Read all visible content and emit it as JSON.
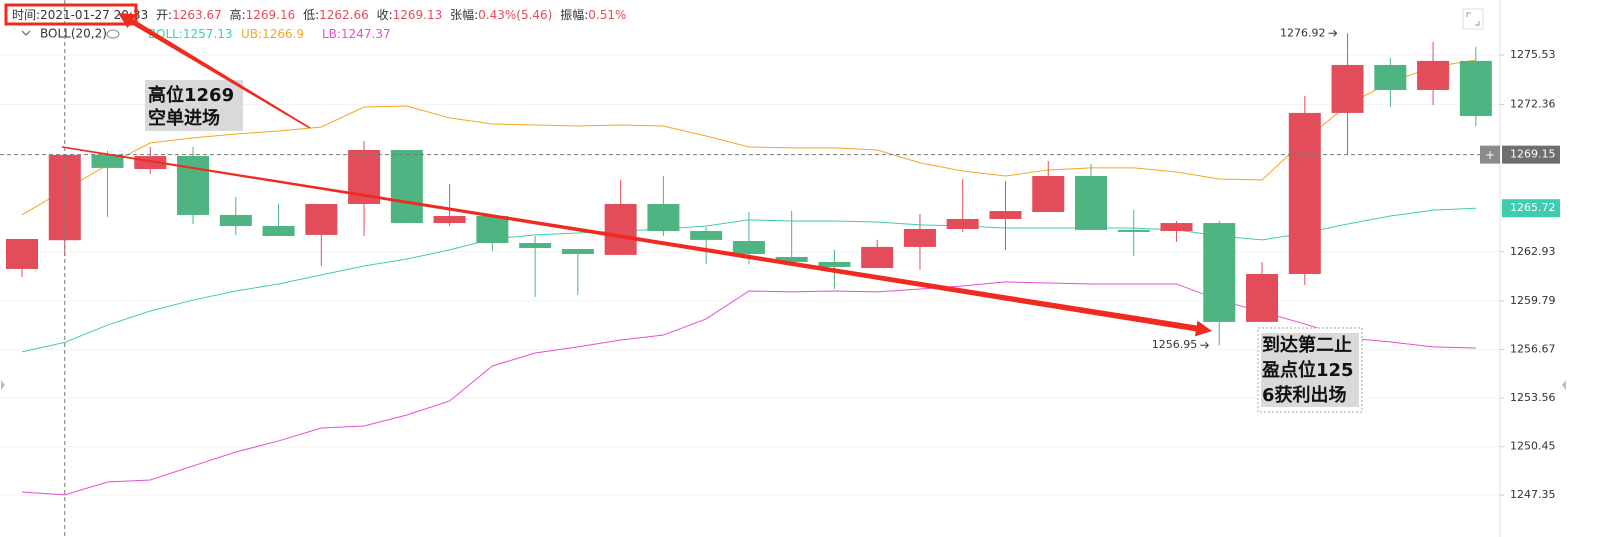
{
  "chart_data": {
    "type": "candlestick",
    "separator": ":",
    "header": {
      "time_label": "时间",
      "time": "2021-01-27 20:33",
      "open_label": "开",
      "high_label": "高",
      "low_label": "低",
      "close_label": "收",
      "change_label": "张幅",
      "change": "0.43%(5.46)",
      "amplitude_label": "振幅",
      "amplitude": "0.51%"
    },
    "indicator": "BOLL(20,2)",
    "up_color": "#e34d59",
    "down_color": "#4db482",
    "candles": {
      "open": [
        1261.83,
        1263.67,
        1269.15,
        1268.23,
        1269.06,
        1265.29,
        1264.58,
        1264.01,
        1265.99,
        1269.45,
        1264.77,
        1265.22,
        1263.49,
        1263.11,
        1262.73,
        1265.99,
        1264.26,
        1263.62,
        1262.6,
        1262.28,
        1261.89,
        1263.24,
        1264.39,
        1265.03,
        1265.48,
        1267.78,
        1264.33,
        1264.26,
        1264.77,
        1258.44,
        1261.51,
        1271.82,
        1274.89,
        1273.29,
        1275.15
      ],
      "high": [
        1263.75,
        1269.16,
        1269.4,
        1269.64,
        1269.64,
        1266.44,
        1265.99,
        1265.99,
        1270.02,
        1269.45,
        1267.27,
        1265.22,
        1263.94,
        1263.11,
        1267.53,
        1267.78,
        1264.52,
        1265.48,
        1265.54,
        1263.05,
        1263.69,
        1265.35,
        1267.59,
        1267.46,
        1268.74,
        1268.55,
        1265.61,
        1264.9,
        1264.9,
        1262.28,
        1272.91,
        1276.92,
        1275.34,
        1276.36,
        1276.04
      ],
      "low": [
        1261.32,
        1262.66,
        1265.16,
        1267.91,
        1264.71,
        1264.01,
        1263.94,
        1262.02,
        1263.94,
        1264.77,
        1264.58,
        1262.98,
        1260.04,
        1260.17,
        1262.73,
        1263.94,
        1262.15,
        1262.15,
        1262.28,
        1260.55,
        1261.89,
        1261.77,
        1264.2,
        1263.05,
        1265.48,
        1264.33,
        1262.66,
        1263.56,
        1256.95,
        1258.44,
        1260.81,
        1269.13,
        1272.2,
        1272.33,
        1270.98
      ],
      "close": [
        1263.75,
        1269.13,
        1268.3,
        1269.06,
        1265.29,
        1264.58,
        1263.94,
        1265.99,
        1269.45,
        1264.77,
        1265.22,
        1263.49,
        1263.17,
        1262.79,
        1265.99,
        1264.26,
        1263.69,
        1262.79,
        1262.28,
        1261.96,
        1263.24,
        1264.39,
        1265.03,
        1265.54,
        1267.78,
        1264.33,
        1264.2,
        1264.77,
        1258.44,
        1261.51,
        1271.82,
        1274.89,
        1273.29,
        1275.15,
        1271.62
      ]
    },
    "series": [
      {
        "name": "BOLL",
        "color": "#3fcdb0",
        "values": [
          1256.52,
          1257.13,
          1258.24,
          1259.14,
          1259.84,
          1260.42,
          1260.87,
          1261.45,
          1262.02,
          1262.47,
          1263.05,
          1263.75,
          1264.01,
          1264.13,
          1264.26,
          1264.39,
          1264.58,
          1264.97,
          1264.9,
          1264.9,
          1264.84,
          1264.65,
          1264.58,
          1264.45,
          1264.45,
          1264.45,
          1264.45,
          1264.33,
          1263.94,
          1263.69,
          1264.13,
          1264.71,
          1265.22,
          1265.6,
          1265.72
        ]
      },
      {
        "name": "UB",
        "color": "#f5a623",
        "values": [
          1265.29,
          1266.9,
          1268.49,
          1269.9,
          1270.22,
          1270.47,
          1270.66,
          1270.92,
          1272.2,
          1272.26,
          1271.5,
          1271.11,
          1271.05,
          1270.98,
          1271.05,
          1270.98,
          1270.34,
          1269.64,
          1269.58,
          1269.58,
          1269.45,
          1268.62,
          1268.1,
          1267.78,
          1268.17,
          1268.3,
          1268.3,
          1268.04,
          1267.59,
          1267.53,
          1270.09,
          1272.33,
          1273.8,
          1274.76,
          1275.21
        ]
      },
      {
        "name": "LB",
        "color": "#e44fcf",
        "values": [
          1247.55,
          1247.37,
          1248.19,
          1248.32,
          1249.22,
          1250.11,
          1250.82,
          1251.65,
          1251.78,
          1252.48,
          1253.38,
          1255.62,
          1256.45,
          1256.84,
          1257.28,
          1257.6,
          1258.63,
          1260.42,
          1260.36,
          1260.42,
          1260.36,
          1260.55,
          1260.74,
          1261.0,
          1260.93,
          1260.87,
          1260.87,
          1260.87,
          1259.84,
          1259.08,
          1258.31,
          1257.41,
          1257.16,
          1256.84,
          1256.77
        ]
      }
    ],
    "ylim": [
      1244.67,
      1279.05
    ],
    "yticks": [
      1275.53,
      1272.36,
      1262.93,
      1259.79,
      1256.67,
      1253.56,
      1250.45,
      1247.35
    ],
    "crosshair_index": 1,
    "crosshair_price": 1269.15,
    "crosshair_button": "+",
    "high_marker_index": 31,
    "low_marker_index": 28,
    "annotations": [
      {
        "lines": [
          "高位1269",
          "空单进场"
        ]
      },
      {
        "lines": [
          "到达第二止",
          "盈点位125",
          "6获利出场"
        ]
      }
    ]
  }
}
